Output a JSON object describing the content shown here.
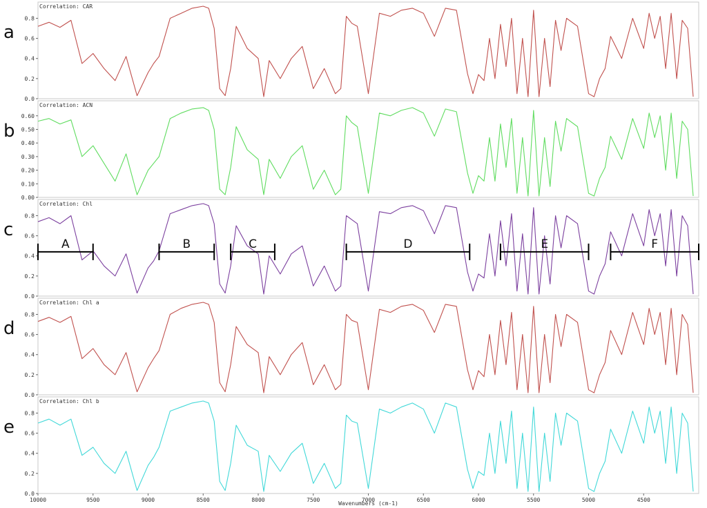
{
  "chart_data": {
    "type": "line",
    "xlabel": "Wavenumbers (cm-1)",
    "xlim": [
      10000,
      4000
    ],
    "x_ticks": [
      "10000",
      "9500",
      "9000",
      "8500",
      "8000",
      "7500",
      "7000",
      "6500",
      "6000",
      "5500",
      "5000",
      "4500"
    ],
    "x_tick_values": [
      10000,
      9500,
      9000,
      8500,
      8000,
      7500,
      7000,
      6500,
      6000,
      5500,
      5000,
      4500
    ],
    "panels": [
      {
        "letter": "a",
        "label": "Correlation: CAR",
        "color": "#c0504d",
        "ylim": [
          0,
          0.92
        ],
        "yticks": [
          "0.0",
          "0.2",
          "0.4",
          "0.6",
          "0.8"
        ],
        "ytick_values": [
          0,
          0.2,
          0.4,
          0.6,
          0.8
        ],
        "x": [
          10000,
          9900,
          9800,
          9700,
          9600,
          9500,
          9400,
          9300,
          9200,
          9100,
          9000,
          8950,
          8900,
          8800,
          8700,
          8600,
          8500,
          8450,
          8400,
          8350,
          8300,
          8250,
          8200,
          8100,
          8000,
          7950,
          7900,
          7800,
          7700,
          7600,
          7500,
          7400,
          7300,
          7250,
          7200,
          7150,
          7100,
          7000,
          6900,
          6800,
          6700,
          6600,
          6500,
          6400,
          6300,
          6200,
          6100,
          6050,
          6000,
          5950,
          5900,
          5850,
          5800,
          5750,
          5700,
          5650,
          5600,
          5550,
          5500,
          5450,
          5400,
          5350,
          5300,
          5250,
          5200,
          5100,
          5000,
          4950,
          4900,
          4850,
          4800,
          4700,
          4600,
          4500,
          4450,
          4400,
          4350,
          4300,
          4250,
          4200,
          4150,
          4100,
          4050
        ],
        "y": [
          0.72,
          0.76,
          0.71,
          0.78,
          0.35,
          0.45,
          0.3,
          0.18,
          0.42,
          0.03,
          0.26,
          0.35,
          0.42,
          0.8,
          0.85,
          0.9,
          0.92,
          0.9,
          0.7,
          0.1,
          0.03,
          0.3,
          0.72,
          0.5,
          0.4,
          0.02,
          0.38,
          0.2,
          0.4,
          0.52,
          0.1,
          0.3,
          0.05,
          0.1,
          0.82,
          0.75,
          0.72,
          0.05,
          0.85,
          0.82,
          0.88,
          0.9,
          0.85,
          0.62,
          0.9,
          0.88,
          0.25,
          0.05,
          0.24,
          0.18,
          0.6,
          0.2,
          0.74,
          0.32,
          0.8,
          0.05,
          0.6,
          0.02,
          0.88,
          0.02,
          0.6,
          0.12,
          0.78,
          0.48,
          0.8,
          0.72,
          0.05,
          0.02,
          0.2,
          0.3,
          0.62,
          0.4,
          0.8,
          0.5,
          0.85,
          0.6,
          0.82,
          0.3,
          0.85,
          0.2,
          0.78,
          0.7,
          0.02
        ]
      },
      {
        "letter": "b",
        "label": "Correlation: ACN",
        "color": "#5fdc5f",
        "ylim": [
          0,
          0.68
        ],
        "yticks": [
          "0.00",
          "0.10",
          "0.20",
          "0.30",
          "0.40",
          "0.50",
          "0.60"
        ],
        "ytick_values": [
          0,
          0.1,
          0.2,
          0.3,
          0.4,
          0.5,
          0.6
        ],
        "x": [
          10000,
          9900,
          9800,
          9700,
          9600,
          9500,
          9400,
          9300,
          9200,
          9100,
          9000,
          8950,
          8900,
          8800,
          8700,
          8600,
          8500,
          8450,
          8400,
          8350,
          8300,
          8250,
          8200,
          8100,
          8000,
          7950,
          7900,
          7800,
          7700,
          7600,
          7500,
          7400,
          7300,
          7250,
          7200,
          7150,
          7100,
          7000,
          6900,
          6800,
          6700,
          6600,
          6500,
          6400,
          6300,
          6200,
          6100,
          6050,
          6000,
          5950,
          5900,
          5850,
          5800,
          5750,
          5700,
          5650,
          5600,
          5550,
          5500,
          5450,
          5400,
          5350,
          5300,
          5250,
          5200,
          5100,
          5000,
          4950,
          4900,
          4850,
          4800,
          4700,
          4600,
          4500,
          4450,
          4400,
          4350,
          4300,
          4250,
          4200,
          4150,
          4100,
          4050
        ],
        "y": [
          0.56,
          0.58,
          0.54,
          0.57,
          0.3,
          0.38,
          0.25,
          0.12,
          0.32,
          0.02,
          0.2,
          0.25,
          0.3,
          0.58,
          0.62,
          0.65,
          0.66,
          0.64,
          0.5,
          0.06,
          0.02,
          0.22,
          0.52,
          0.35,
          0.28,
          0.02,
          0.28,
          0.14,
          0.3,
          0.38,
          0.06,
          0.2,
          0.02,
          0.06,
          0.6,
          0.55,
          0.52,
          0.03,
          0.62,
          0.6,
          0.64,
          0.66,
          0.62,
          0.45,
          0.65,
          0.63,
          0.18,
          0.03,
          0.16,
          0.12,
          0.44,
          0.12,
          0.54,
          0.22,
          0.58,
          0.03,
          0.44,
          0.01,
          0.64,
          0.01,
          0.44,
          0.08,
          0.56,
          0.34,
          0.58,
          0.52,
          0.03,
          0.01,
          0.14,
          0.22,
          0.45,
          0.28,
          0.58,
          0.36,
          0.62,
          0.44,
          0.6,
          0.2,
          0.62,
          0.14,
          0.56,
          0.5,
          0.01
        ]
      },
      {
        "letter": "c",
        "label": "Correlation: Chl",
        "color": "#7b3f9e",
        "ylim": [
          0,
          0.92
        ],
        "yticks": [
          "0.0",
          "0.2",
          "0.4",
          "0.6",
          "0.8"
        ],
        "ytick_values": [
          0,
          0.2,
          0.4,
          0.6,
          0.8
        ],
        "x": [
          10000,
          9900,
          9800,
          9700,
          9600,
          9500,
          9400,
          9300,
          9200,
          9100,
          9000,
          8950,
          8900,
          8800,
          8700,
          8600,
          8500,
          8450,
          8400,
          8350,
          8300,
          8250,
          8200,
          8100,
          8000,
          7950,
          7900,
          7800,
          7700,
          7600,
          7500,
          7400,
          7300,
          7250,
          7200,
          7150,
          7100,
          7000,
          6900,
          6800,
          6700,
          6600,
          6500,
          6400,
          6300,
          6200,
          6100,
          6050,
          6000,
          5950,
          5900,
          5850,
          5800,
          5750,
          5700,
          5650,
          5600,
          5550,
          5500,
          5450,
          5400,
          5350,
          5300,
          5250,
          5200,
          5100,
          5000,
          4950,
          4900,
          4850,
          4800,
          4700,
          4600,
          4500,
          4450,
          4400,
          4350,
          4300,
          4250,
          4200,
          4150,
          4100,
          4050
        ],
        "y": [
          0.74,
          0.78,
          0.72,
          0.8,
          0.36,
          0.45,
          0.3,
          0.2,
          0.42,
          0.03,
          0.28,
          0.35,
          0.45,
          0.82,
          0.86,
          0.9,
          0.92,
          0.9,
          0.72,
          0.12,
          0.03,
          0.3,
          0.7,
          0.5,
          0.42,
          0.02,
          0.4,
          0.22,
          0.42,
          0.5,
          0.1,
          0.3,
          0.05,
          0.1,
          0.8,
          0.76,
          0.72,
          0.05,
          0.84,
          0.82,
          0.88,
          0.9,
          0.85,
          0.62,
          0.9,
          0.88,
          0.24,
          0.05,
          0.22,
          0.18,
          0.62,
          0.2,
          0.75,
          0.3,
          0.82,
          0.05,
          0.62,
          0.02,
          0.88,
          0.02,
          0.6,
          0.12,
          0.8,
          0.48,
          0.8,
          0.72,
          0.05,
          0.02,
          0.2,
          0.32,
          0.64,
          0.4,
          0.82,
          0.5,
          0.86,
          0.6,
          0.82,
          0.3,
          0.86,
          0.2,
          0.8,
          0.7,
          0.02
        ],
        "regions": [
          {
            "label": "A",
            "from": 10000,
            "to": 9500,
            "level": 0.44
          },
          {
            "label": "B",
            "from": 8900,
            "to": 8400,
            "level": 0.44
          },
          {
            "label": "C",
            "from": 8250,
            "to": 7850,
            "level": 0.44
          },
          {
            "label": "D",
            "from": 7200,
            "to": 6080,
            "level": 0.44
          },
          {
            "label": "E",
            "from": 5800,
            "to": 5000,
            "level": 0.44
          },
          {
            "label": "F",
            "from": 4800,
            "to": 4000,
            "level": 0.44
          }
        ]
      },
      {
        "letter": "d",
        "label": "Correlation: Chl a",
        "color": "#c0504d",
        "ylim": [
          0,
          0.92
        ],
        "yticks": [
          "0.0",
          "0.2",
          "0.4",
          "0.6",
          "0.8"
        ],
        "ytick_values": [
          0,
          0.2,
          0.4,
          0.6,
          0.8
        ],
        "x": [
          10000,
          9900,
          9800,
          9700,
          9600,
          9500,
          9400,
          9300,
          9200,
          9100,
          9000,
          8950,
          8900,
          8800,
          8700,
          8600,
          8500,
          8450,
          8400,
          8350,
          8300,
          8250,
          8200,
          8100,
          8000,
          7950,
          7900,
          7800,
          7700,
          7600,
          7500,
          7400,
          7300,
          7250,
          7200,
          7150,
          7100,
          7000,
          6900,
          6800,
          6700,
          6600,
          6500,
          6400,
          6300,
          6200,
          6100,
          6050,
          6000,
          5950,
          5900,
          5850,
          5800,
          5750,
          5700,
          5650,
          5600,
          5550,
          5500,
          5450,
          5400,
          5350,
          5300,
          5250,
          5200,
          5100,
          5000,
          4950,
          4900,
          4850,
          4800,
          4700,
          4600,
          4500,
          4450,
          4400,
          4350,
          4300,
          4250,
          4200,
          4150,
          4100,
          4050
        ],
        "y": [
          0.73,
          0.77,
          0.72,
          0.78,
          0.36,
          0.46,
          0.3,
          0.2,
          0.42,
          0.03,
          0.27,
          0.36,
          0.44,
          0.8,
          0.86,
          0.9,
          0.92,
          0.9,
          0.72,
          0.12,
          0.03,
          0.3,
          0.68,
          0.5,
          0.42,
          0.02,
          0.38,
          0.2,
          0.4,
          0.52,
          0.1,
          0.3,
          0.05,
          0.1,
          0.8,
          0.74,
          0.72,
          0.05,
          0.85,
          0.82,
          0.88,
          0.9,
          0.84,
          0.62,
          0.9,
          0.88,
          0.25,
          0.05,
          0.24,
          0.18,
          0.6,
          0.2,
          0.74,
          0.3,
          0.82,
          0.05,
          0.6,
          0.02,
          0.88,
          0.02,
          0.6,
          0.12,
          0.8,
          0.48,
          0.8,
          0.72,
          0.05,
          0.02,
          0.2,
          0.32,
          0.64,
          0.4,
          0.82,
          0.5,
          0.86,
          0.6,
          0.82,
          0.3,
          0.86,
          0.2,
          0.8,
          0.7,
          0.02
        ]
      },
      {
        "letter": "e",
        "label": "Correlation: Chl b",
        "color": "#40d8d8",
        "ylim": [
          0,
          0.92
        ],
        "yticks": [
          "0.0",
          "0.2",
          "0.4",
          "0.6",
          "0.8"
        ],
        "ytick_values": [
          0,
          0.2,
          0.4,
          0.6,
          0.8
        ],
        "x": [
          10000,
          9900,
          9800,
          9700,
          9600,
          9500,
          9400,
          9300,
          9200,
          9100,
          9000,
          8950,
          8900,
          8800,
          8700,
          8600,
          8500,
          8450,
          8400,
          8350,
          8300,
          8250,
          8200,
          8100,
          8000,
          7950,
          7900,
          7800,
          7700,
          7600,
          7500,
          7400,
          7300,
          7250,
          7200,
          7150,
          7100,
          7000,
          6900,
          6800,
          6700,
          6600,
          6500,
          6400,
          6300,
          6200,
          6100,
          6050,
          6000,
          5950,
          5900,
          5850,
          5800,
          5750,
          5700,
          5650,
          5600,
          5550,
          5500,
          5450,
          5400,
          5350,
          5300,
          5250,
          5200,
          5100,
          5000,
          4950,
          4900,
          4850,
          4800,
          4700,
          4600,
          4500,
          4450,
          4400,
          4350,
          4300,
          4250,
          4200,
          4150,
          4100,
          4050
        ],
        "y": [
          0.7,
          0.74,
          0.68,
          0.74,
          0.38,
          0.46,
          0.3,
          0.2,
          0.42,
          0.03,
          0.28,
          0.36,
          0.46,
          0.82,
          0.86,
          0.9,
          0.92,
          0.9,
          0.72,
          0.12,
          0.03,
          0.3,
          0.68,
          0.48,
          0.42,
          0.02,
          0.38,
          0.22,
          0.4,
          0.5,
          0.1,
          0.3,
          0.05,
          0.1,
          0.78,
          0.72,
          0.7,
          0.05,
          0.84,
          0.8,
          0.86,
          0.9,
          0.84,
          0.6,
          0.9,
          0.86,
          0.24,
          0.05,
          0.22,
          0.18,
          0.6,
          0.2,
          0.72,
          0.3,
          0.82,
          0.05,
          0.6,
          0.02,
          0.86,
          0.02,
          0.6,
          0.12,
          0.8,
          0.48,
          0.8,
          0.72,
          0.05,
          0.02,
          0.2,
          0.32,
          0.64,
          0.4,
          0.82,
          0.5,
          0.86,
          0.6,
          0.82,
          0.3,
          0.86,
          0.2,
          0.8,
          0.7,
          0.02
        ]
      }
    ]
  }
}
